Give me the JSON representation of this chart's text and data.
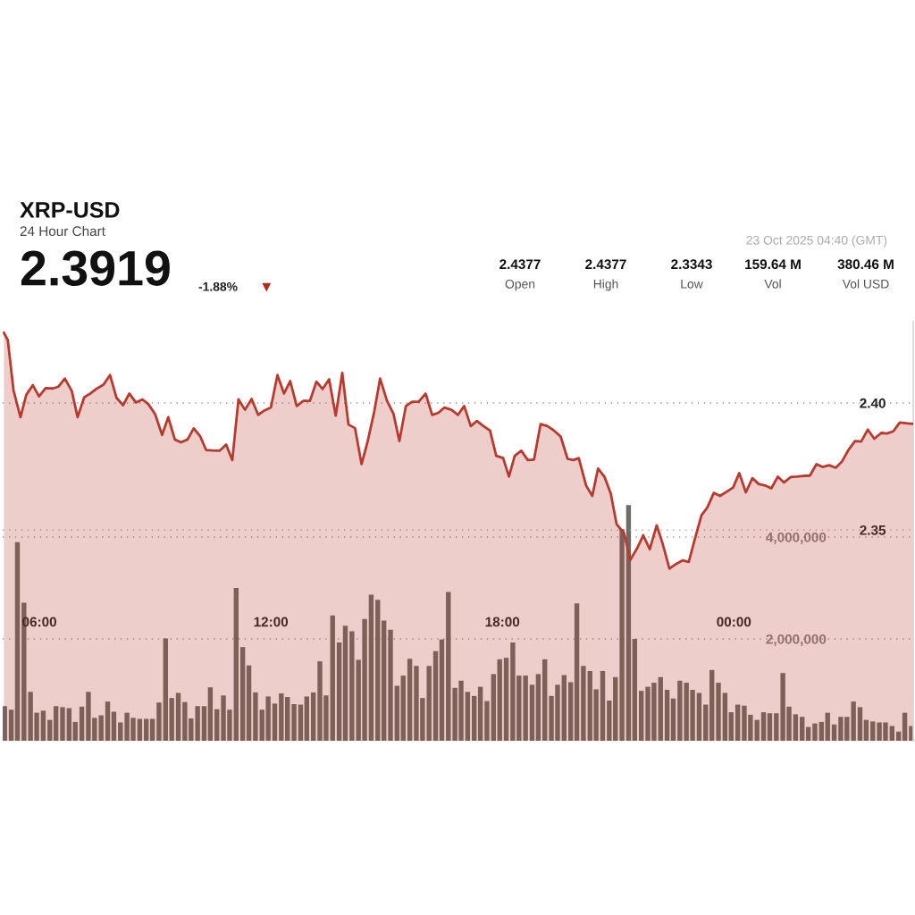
{
  "chart_data": {
    "type": "area",
    "title": "XRP-USD",
    "subtitle": "24 Hour Chart",
    "annotations": [
      "2.3919",
      "-1.88%",
      "▼",
      "2.4377",
      "Open",
      "2.4377",
      "High",
      "2.3343",
      "Low",
      "159.64 M",
      "Vol",
      "380.46 M",
      "Vol USD",
      "23 Oct 2025 04:40 (GMT)"
    ],
    "xlim": [
      5.05,
      28.65
    ],
    "xticks": [
      {
        "value": 6,
        "label": "06:00"
      },
      {
        "value": 12,
        "label": "12:00"
      },
      {
        "value": 18,
        "label": "18:00"
      },
      {
        "value": 24,
        "label": "00:00"
      }
    ],
    "ylim": [
      2.267,
      2.432
    ],
    "yticks": [
      {
        "value": 2.35,
        "label": "2.35"
      },
      {
        "value": 2.4,
        "label": "2.40"
      }
    ],
    "y2lim": [
      0,
      8230000
    ],
    "y2ticks": [
      {
        "value": 2000000,
        "label": "2,000,000"
      },
      {
        "value": 4000000,
        "label": "4,000,000"
      }
    ],
    "grid": "y",
    "series": [
      {
        "type": "bar",
        "axis": "y2",
        "color": "#6b6d66",
        "x": [
          5.1,
          5.27,
          5.43,
          5.6,
          5.77,
          5.93,
          6.1,
          6.27,
          6.43,
          6.6,
          6.77,
          6.93,
          7.1,
          7.27,
          7.43,
          7.6,
          7.77,
          7.93,
          8.1,
          8.27,
          8.43,
          8.6,
          8.77,
          8.93,
          9.1,
          9.27,
          9.43,
          9.6,
          9.77,
          9.93,
          10.1,
          10.27,
          10.43,
          10.6,
          10.77,
          10.93,
          11.1,
          11.27,
          11.43,
          11.6,
          11.77,
          11.93,
          12.1,
          12.27,
          12.43,
          12.6,
          12.77,
          12.93,
          13.1,
          13.27,
          13.43,
          13.6,
          13.77,
          13.93,
          14.1,
          14.27,
          14.43,
          14.6,
          14.77,
          14.93,
          15.1,
          15.27,
          15.43,
          15.6,
          15.77,
          15.93,
          16.1,
          16.27,
          16.43,
          16.6,
          16.77,
          16.93,
          17.1,
          17.27,
          17.43,
          17.6,
          17.77,
          17.93,
          18.1,
          18.27,
          18.43,
          18.6,
          18.77,
          18.93,
          19.1,
          19.27,
          19.43,
          19.6,
          19.77,
          19.93,
          20.1,
          20.27,
          20.43,
          20.6,
          20.77,
          20.93,
          21.1,
          21.27,
          21.43,
          21.6,
          21.77,
          21.93,
          22.1,
          22.27,
          22.43,
          22.6,
          22.77,
          22.93,
          23.1,
          23.27,
          23.43,
          23.6,
          23.77,
          23.93,
          24.1,
          24.27,
          24.43,
          24.6,
          24.77,
          24.93,
          25.1,
          25.27,
          25.43,
          25.6,
          25.77,
          25.93,
          26.1,
          26.27,
          26.43,
          26.6,
          26.77,
          26.93,
          27.1,
          27.27,
          27.43,
          27.6,
          27.77,
          27.93,
          28.1,
          28.27,
          28.43,
          28.6
        ],
        "values": [
          680000,
          610000,
          3900000,
          2710000,
          960000,
          550000,
          590000,
          410000,
          680000,
          660000,
          640000,
          370000,
          670000,
          960000,
          450000,
          500000,
          770000,
          570000,
          360000,
          550000,
          450000,
          430000,
          430000,
          430000,
          750000,
          2010000,
          840000,
          940000,
          760000,
          440000,
          680000,
          680000,
          1050000,
          620000,
          890000,
          610000,
          3000000,
          1840000,
          1480000,
          950000,
          610000,
          870000,
          730000,
          930000,
          860000,
          720000,
          710000,
          870000,
          950000,
          1560000,
          890000,
          2460000,
          1930000,
          2260000,
          2150000,
          1590000,
          2390000,
          2870000,
          2770000,
          2360000,
          2180000,
          1080000,
          1280000,
          1610000,
          1470000,
          840000,
          1470000,
          1760000,
          1990000,
          2920000,
          1040000,
          1180000,
          960000,
          880000,
          1060000,
          780000,
          1310000,
          1600000,
          1630000,
          1930000,
          1280000,
          1280000,
          1100000,
          1310000,
          1600000,
          880000,
          1100000,
          1290000,
          1150000,
          2700000,
          1470000,
          1370000,
          1010000,
          1370000,
          790000,
          1250000,
          4160000,
          4630000,
          2000000,
          980000,
          1060000,
          1140000,
          1250000,
          1000000,
          830000,
          1180000,
          1140000,
          1000000,
          940000,
          710000,
          1390000,
          1140000,
          940000,
          560000,
          710000,
          690000,
          510000,
          410000,
          560000,
          540000,
          540000,
          1330000,
          670000,
          520000,
          470000,
          270000,
          340000,
          370000,
          550000,
          320000,
          470000,
          470000,
          770000,
          660000,
          410000,
          380000,
          360000,
          360000,
          290000,
          180000,
          550000,
          290000
        ]
      },
      {
        "color": "#b83a2e",
        "x": [
          5.08,
          5.18,
          5.33,
          5.51,
          5.66,
          5.83,
          5.99,
          6.16,
          6.35,
          6.49,
          6.66,
          6.84,
          6.99,
          7.16,
          7.32,
          7.47,
          7.66,
          7.83,
          8.0,
          8.17,
          8.33,
          8.5,
          8.67,
          8.82,
          9.0,
          9.18,
          9.34,
          9.51,
          9.67,
          9.84,
          10.0,
          10.17,
          10.32,
          10.49,
          10.67,
          10.84,
          11.0,
          11.16,
          11.33,
          11.5,
          11.67,
          11.83,
          12.0,
          12.17,
          12.34,
          12.5,
          12.67,
          12.84,
          13.01,
          13.18,
          13.34,
          13.51,
          13.68,
          13.85,
          14.01,
          14.18,
          14.35,
          14.51,
          14.68,
          14.83,
          15.01,
          15.18,
          15.33,
          15.5,
          15.66,
          15.83,
          16.01,
          16.18,
          16.34,
          16.5,
          16.68,
          16.85,
          17.01,
          17.18,
          17.34,
          17.51,
          17.68,
          17.84,
          18.02,
          18.17,
          18.32,
          18.49,
          18.66,
          18.82,
          18.99,
          19.17,
          19.34,
          19.51,
          19.69,
          19.84,
          19.98,
          20.17,
          20.33,
          20.48,
          20.65,
          20.81,
          20.96,
          21.15,
          21.32,
          21.5,
          21.65,
          21.82,
          22.0,
          22.15,
          22.33,
          22.5,
          22.67,
          22.83,
          22.98,
          23.16,
          23.31,
          23.48,
          23.64,
          23.81,
          23.98,
          24.14,
          24.31,
          24.48,
          24.64,
          24.81,
          24.97,
          25.14,
          25.3,
          25.47,
          25.64,
          25.8,
          25.97,
          26.14,
          26.3,
          26.47,
          26.64,
          26.8,
          26.97,
          27.14,
          27.3,
          27.47,
          27.64,
          27.82,
          27.97,
          28.13,
          28.3,
          28.47,
          28.63
        ],
        "values": [
          2.4276,
          2.4248,
          2.4049,
          2.3944,
          2.4032,
          2.407,
          2.4026,
          2.4058,
          2.4057,
          2.4064,
          2.4096,
          2.4047,
          2.3944,
          2.4022,
          2.4037,
          2.4055,
          2.4072,
          2.411,
          2.402,
          2.3991,
          2.4037,
          2.4002,
          2.4014,
          2.3996,
          2.3956,
          2.3874,
          2.3944,
          2.3856,
          2.3845,
          2.3856,
          2.39,
          2.3868,
          2.3815,
          2.3813,
          2.3812,
          2.3836,
          2.3775,
          2.4014,
          2.3973,
          2.4016,
          2.3953,
          2.397,
          2.3982,
          2.411,
          2.4037,
          2.4086,
          2.3988,
          2.4008,
          2.4008,
          2.4084,
          2.4055,
          2.4093,
          2.395,
          2.4119,
          2.3915,
          2.3901,
          2.3759,
          2.385,
          2.3967,
          2.4096,
          2.4008,
          2.3956,
          2.385,
          2.3988,
          2.4005,
          2.4005,
          2.4037,
          2.3953,
          2.3961,
          2.3982,
          2.3973,
          2.3953,
          2.3988,
          2.3909,
          2.3929,
          2.3909,
          2.3891,
          2.3792,
          2.3783,
          2.371,
          2.3792,
          2.3812,
          2.3775,
          2.3777,
          2.3917,
          2.3909,
          2.3891,
          2.3868,
          2.378,
          2.3775,
          2.3783,
          2.3675,
          2.3634,
          2.3742,
          2.3708,
          2.3643,
          2.3523,
          2.3488,
          2.3383,
          2.343,
          2.3479,
          2.3424,
          2.3518,
          2.3448,
          2.3348,
          2.3366,
          2.338,
          2.3374,
          2.3459,
          2.3558,
          2.3588,
          2.3646,
          2.3634,
          2.365,
          2.3667,
          2.3724,
          2.3648,
          2.3704,
          2.3681,
          2.3675,
          2.3664,
          2.371,
          2.3687,
          2.3708,
          2.371,
          2.3713,
          2.3714,
          2.3759,
          2.3748,
          2.3755,
          2.3745,
          2.3769,
          2.3815,
          2.385,
          2.3848,
          2.3895,
          2.3859,
          2.3882,
          2.388,
          2.3888,
          2.3923,
          2.392,
          2.3918
        ]
      }
    ]
  }
}
